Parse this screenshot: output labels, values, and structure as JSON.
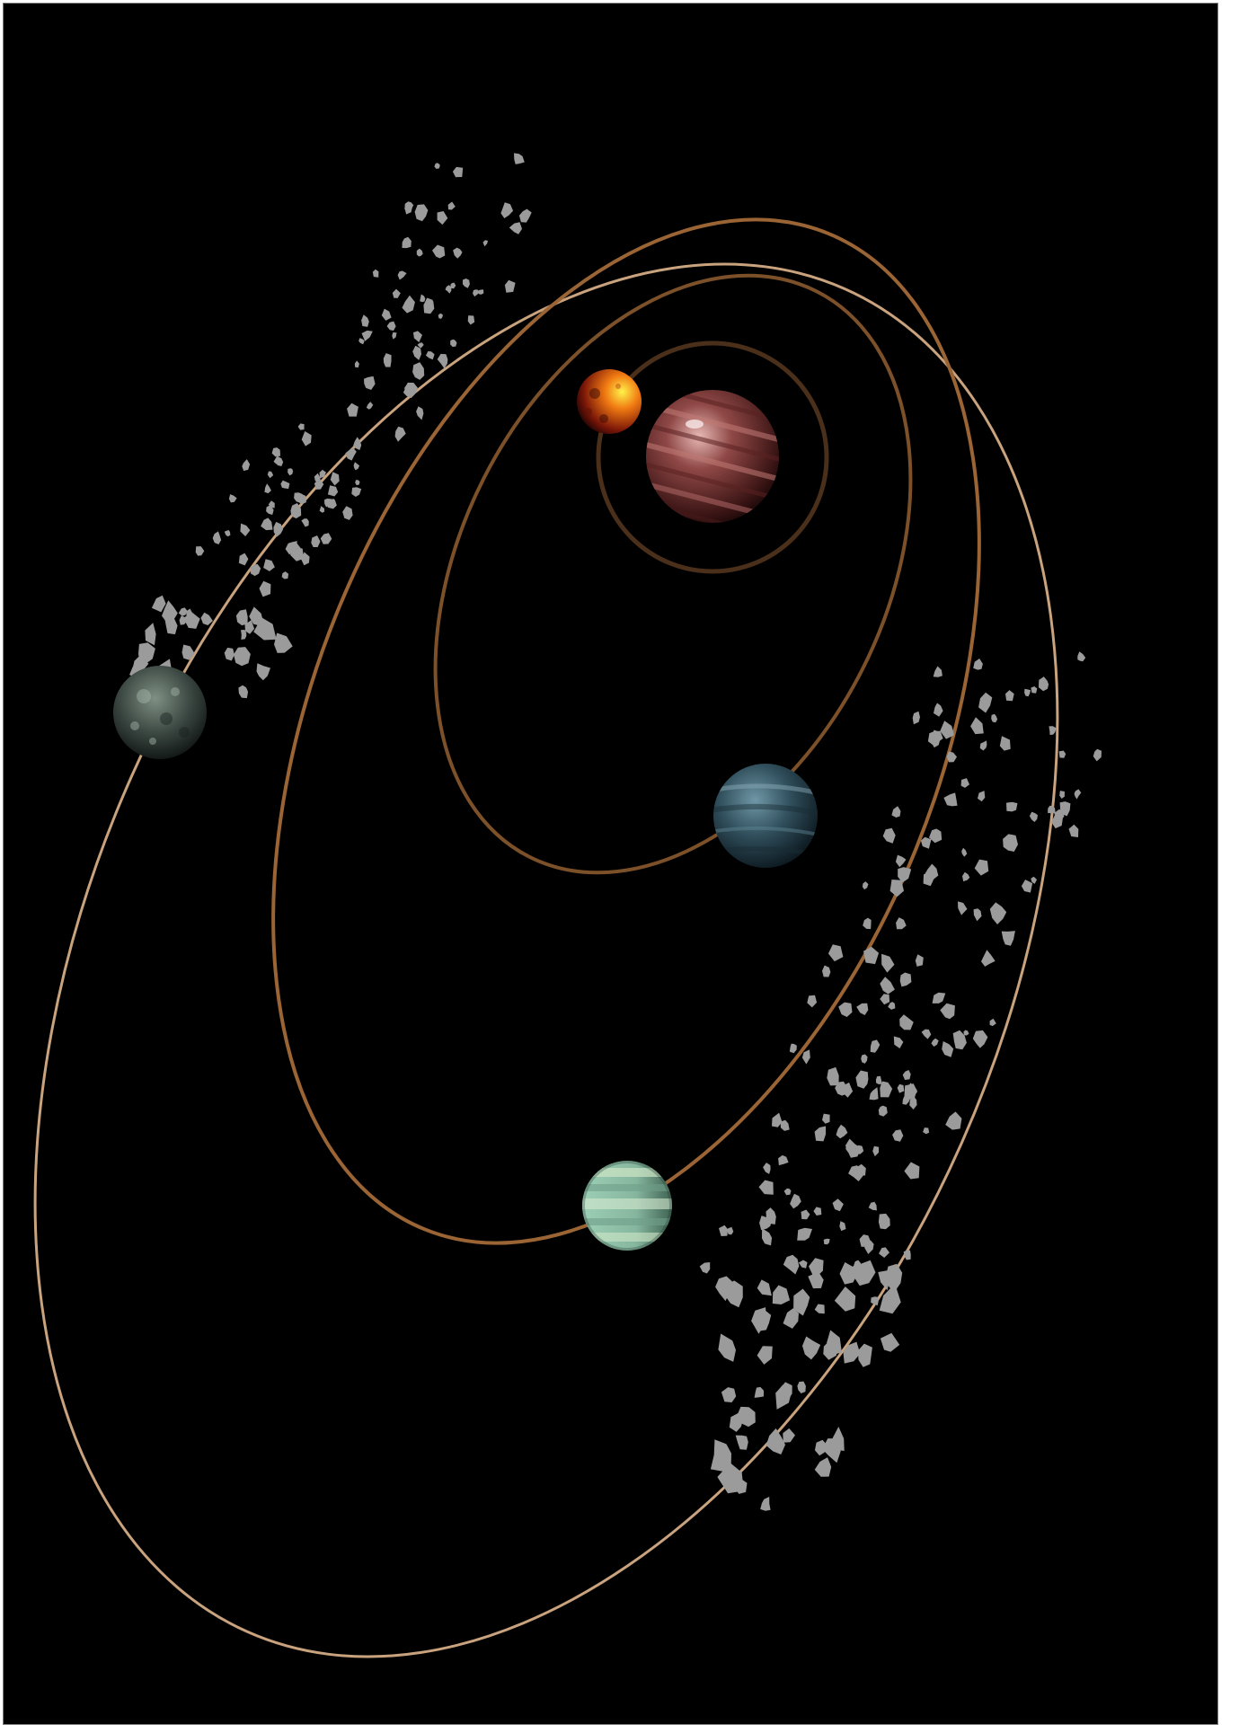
{
  "scene": {
    "background_color": "#000000",
    "frame_border_color": "#7a7a7a",
    "orbit_colors": {
      "outer": "#c9a27e",
      "middle": "#9a6434",
      "inner": "#7c5028",
      "innermost": "#4a2f1a"
    },
    "asteroid_color": "#9b9b9b",
    "bodies": [
      {
        "name": "molten-moon",
        "colors": [
          "#fff24a",
          "#f07a12",
          "#7a1608"
        ]
      },
      {
        "name": "gas-giant",
        "colors": [
          "#c88888",
          "#8f4846",
          "#3a1414"
        ]
      },
      {
        "name": "blue-planet",
        "colors": [
          "#5f8796",
          "#2f4d5a",
          "#0f1c24"
        ]
      },
      {
        "name": "green-planet",
        "colors": [
          "#cfe6c6",
          "#86b69e",
          "#3e6252"
        ]
      },
      {
        "name": "rocky-planet",
        "colors": [
          "#6e7f73",
          "#3a4641",
          "#101614"
        ]
      }
    ]
  }
}
